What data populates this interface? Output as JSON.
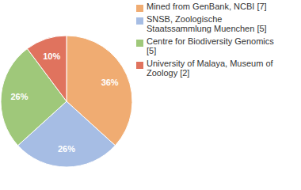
{
  "chart_data": {
    "type": "pie",
    "categories": [
      "Mined from GenBank, NCBI [7]",
      "SNSB, Zoologische Staatssammlung Muenchen [5]",
      "Centre for Biodiversity Genomics [5]",
      "University of Malaya, Museum of Zoology [2]"
    ],
    "values": [
      36,
      26,
      26,
      10
    ],
    "value_labels": [
      "36%",
      "26%",
      "26%",
      "10%"
    ],
    "colors": [
      "#f0ac72",
      "#a6bde4",
      "#9fc87a",
      "#e0735e"
    ],
    "data_labels": true,
    "legend": "top-right"
  }
}
